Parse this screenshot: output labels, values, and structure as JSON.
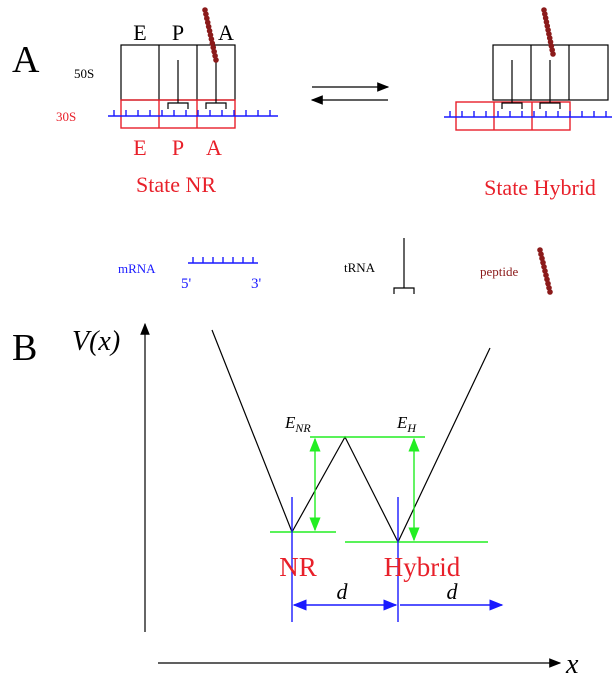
{
  "panel_a": {
    "label": "A",
    "top_sites": [
      "E",
      "P",
      "A"
    ],
    "large_subunit": "50S",
    "small_subunit": "30S",
    "bottom_sites": [
      "E",
      "P",
      "A"
    ],
    "state_nr": "State NR",
    "state_hybrid": "State Hybrid",
    "legend": {
      "mrna": "mRNA",
      "five_prime": "5'",
      "three_prime": "3'",
      "trna": "tRNA",
      "peptide": "peptide"
    }
  },
  "panel_b": {
    "label": "B",
    "y_axis": "V(x)",
    "x_axis": "x",
    "barrier_labels": [
      {
        "base": "E",
        "sub": "NR"
      },
      {
        "base": "E",
        "sub": "H"
      }
    ],
    "wells": [
      "NR",
      "Hybrid"
    ],
    "distance_labels": [
      "d",
      "d"
    ]
  }
}
